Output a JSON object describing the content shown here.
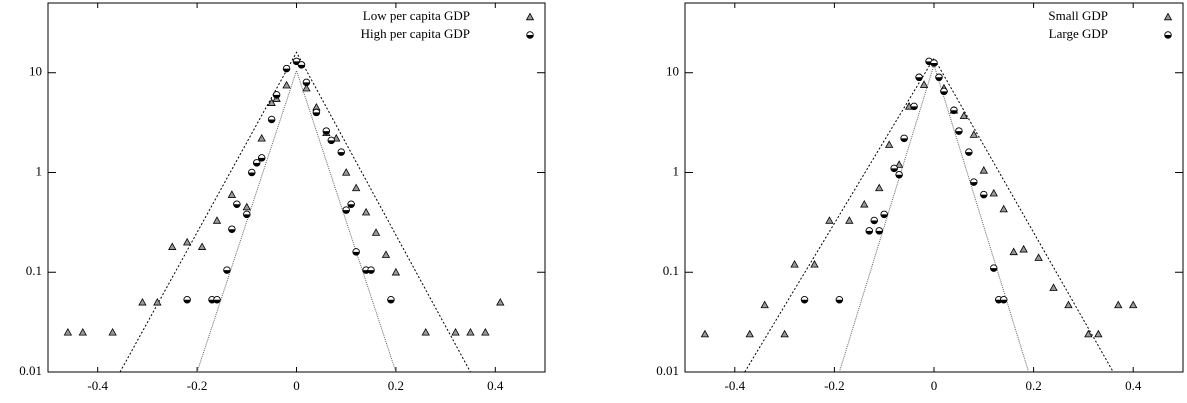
{
  "chart_data": [
    {
      "type": "scatter",
      "log_y": true,
      "legend": "upper right",
      "xlim": [
        -0.5,
        0.5
      ],
      "xticks": [
        -0.4,
        -0.2,
        0,
        0.2,
        0.4
      ],
      "ylim": [
        0.01,
        50
      ],
      "yticks": [
        0.01,
        0.1,
        1,
        10
      ],
      "series": [
        {
          "name": "Low per capita GDP",
          "marker": "triangle",
          "color": "#999999",
          "x": [
            -0.46,
            -0.43,
            -0.37,
            -0.31,
            -0.28,
            -0.25,
            -0.22,
            -0.19,
            -0.16,
            -0.13,
            -0.1,
            -0.07,
            -0.05,
            -0.04,
            -0.02,
            0.02,
            0.04,
            0.06,
            0.08,
            0.1,
            0.12,
            0.14,
            0.16,
            0.18,
            0.2,
            0.26,
            0.32,
            0.35,
            0.38,
            0.41
          ],
          "values": [
            0.025,
            0.025,
            0.025,
            0.05,
            0.05,
            0.18,
            0.2,
            0.18,
            0.33,
            0.6,
            0.45,
            2.2,
            5,
            5.5,
            7.5,
            7,
            4.5,
            2.5,
            2.2,
            1,
            0.7,
            0.4,
            0.25,
            0.15,
            0.1,
            0.025,
            0.025,
            0.025,
            0.025,
            0.05
          ]
        },
        {
          "name": "High per capita GDP",
          "marker": "circle",
          "color": "#000000",
          "x": [
            -0.22,
            -0.17,
            -0.16,
            -0.14,
            -0.13,
            -0.12,
            -0.1,
            -0.09,
            -0.08,
            -0.07,
            -0.05,
            -0.04,
            -0.02,
            0,
            0.01,
            0.02,
            0.04,
            0.06,
            0.07,
            0.09,
            0.1,
            0.11,
            0.12,
            0.14,
            0.15,
            0.19
          ],
          "values": [
            0.053,
            0.053,
            0.053,
            0.105,
            0.27,
            0.48,
            0.38,
            1,
            1.25,
            1.4,
            3.4,
            6,
            11,
            13,
            12,
            8,
            4,
            2.6,
            2.1,
            1.6,
            0.42,
            0.48,
            0.16,
            0.105,
            0.105,
            0.053
          ]
        }
      ],
      "lines": [
        {
          "color": "#000000",
          "x": [
            -0.355,
            0,
            0.35
          ],
          "values": [
            0.01,
            16,
            0.01
          ]
        },
        {
          "color": "#666666",
          "x": [
            -0.2,
            0,
            0.2
          ],
          "values": [
            0.01,
            10.5,
            0.01
          ]
        }
      ]
    },
    {
      "type": "scatter",
      "log_y": true,
      "legend": "upper right",
      "xlim": [
        -0.5,
        0.5
      ],
      "xticks": [
        -0.4,
        -0.2,
        0,
        0.2,
        0.4
      ],
      "ylim": [
        0.01,
        50
      ],
      "yticks": [
        0.01,
        0.1,
        1,
        10
      ],
      "series": [
        {
          "name": "Small GDP",
          "marker": "triangle",
          "color": "#999999",
          "x": [
            -0.46,
            -0.37,
            -0.34,
            -0.3,
            -0.28,
            -0.24,
            -0.21,
            -0.17,
            -0.14,
            -0.11,
            -0.09,
            -0.07,
            -0.05,
            -0.02,
            0.02,
            0.04,
            0.06,
            0.08,
            0.1,
            0.12,
            0.14,
            0.16,
            0.18,
            0.21,
            0.24,
            0.27,
            0.31,
            0.33,
            0.37,
            0.4
          ],
          "values": [
            0.024,
            0.024,
            0.047,
            0.024,
            0.12,
            0.12,
            0.33,
            0.33,
            0.48,
            0.7,
            1.9,
            1.2,
            4.6,
            7.6,
            7,
            4.2,
            3.7,
            2.4,
            1.05,
            0.62,
            0.43,
            0.16,
            0.17,
            0.14,
            0.07,
            0.047,
            0.024,
            0.024,
            0.047,
            0.047
          ]
        },
        {
          "name": "Large GDP",
          "marker": "circle",
          "color": "#000000",
          "x": [
            -0.26,
            -0.19,
            -0.13,
            -0.12,
            -0.11,
            -0.1,
            -0.08,
            -0.07,
            -0.06,
            -0.04,
            -0.03,
            -0.01,
            0,
            0.01,
            0.02,
            0.04,
            0.05,
            0.07,
            0.08,
            0.1,
            0.12,
            0.13,
            0.14
          ],
          "values": [
            0.053,
            0.053,
            0.26,
            0.33,
            0.26,
            0.38,
            1.1,
            0.95,
            2.2,
            4.6,
            9,
            13,
            12.5,
            9,
            6.5,
            4.2,
            2.6,
            1.6,
            0.8,
            0.6,
            0.11,
            0.053,
            0.053
          ]
        }
      ],
      "lines": [
        {
          "color": "#000000",
          "x": [
            -0.38,
            0,
            0.36
          ],
          "values": [
            0.01,
            14,
            0.01
          ]
        },
        {
          "color": "#666666",
          "x": [
            -0.19,
            0,
            0.19
          ],
          "values": [
            0.01,
            12,
            0.01
          ]
        }
      ]
    }
  ]
}
